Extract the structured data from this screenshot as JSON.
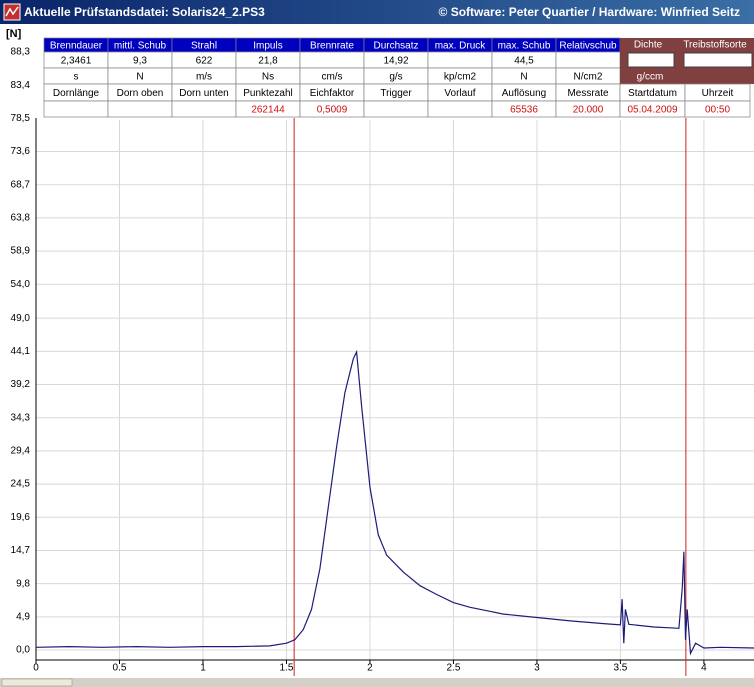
{
  "window": {
    "title": "Aktuelle Prüfstandsdatei: Solaris24_2.PS3",
    "credits": "© Software: Peter Quartier / Hardware: Winfried Seitz"
  },
  "table": {
    "headers": [
      "Brenndauer",
      "mittl. Schub",
      "Strahl",
      "Impuls",
      "Brennrate",
      "Durchsatz",
      "max. Druck",
      "max. Schub",
      "Relativschub"
    ],
    "values": [
      "2,3461",
      "9,3",
      "622",
      "21,8",
      null,
      "14,92",
      null,
      "44,5",
      null
    ],
    "units": [
      "s",
      "N",
      "m/s",
      "Ns",
      "cm/s",
      "g/s",
      "kp/cm2",
      "N",
      "N/cm2"
    ],
    "extra_headers": [
      "Dichte",
      "Treibstoffsorte"
    ],
    "extra_units": [
      "g/ccm"
    ],
    "headers2": [
      "Dornlänge",
      "Dorn oben",
      "Dorn unten",
      "Punktezahl",
      "Eichfaktor",
      "Trigger",
      "Vorlauf",
      "Auflösung",
      "Messrate",
      "Startdatum",
      "Uhrzeit"
    ],
    "values2": [
      null,
      null,
      null,
      "262144",
      "0,5009",
      null,
      null,
      "65536",
      "20.000",
      "05.04.2009",
      "00:50"
    ]
  },
  "chart_data": {
    "type": "line",
    "ylabel": "[N]",
    "x": [
      0,
      0.2,
      0.4,
      0.6,
      0.8,
      1.0,
      1.2,
      1.4,
      1.5,
      1.55,
      1.6,
      1.65,
      1.7,
      1.75,
      1.8,
      1.85,
      1.9,
      1.92,
      1.95,
      2.0,
      2.05,
      2.1,
      2.2,
      2.3,
      2.4,
      2.5,
      2.6,
      2.7,
      2.8,
      3.0,
      3.2,
      3.4,
      3.5,
      3.51,
      3.52,
      3.53,
      3.55,
      3.7,
      3.85,
      3.87,
      3.88,
      3.89,
      3.9,
      3.92,
      3.95,
      4.0,
      4.1,
      4.3
    ],
    "series": [
      {
        "color": "#1c1c78",
        "values": [
          0.4,
          0.5,
          0.4,
          0.5,
          0.4,
          0.5,
          0.5,
          0.6,
          1.0,
          1.5,
          3.0,
          6.0,
          12.0,
          21.0,
          30.0,
          38.0,
          43.0,
          44.0,
          36.0,
          24.0,
          17.0,
          14.0,
          11.5,
          9.5,
          8.2,
          7.0,
          6.3,
          5.8,
          5.3,
          4.8,
          4.3,
          3.9,
          3.7,
          7.5,
          1.0,
          6.0,
          3.8,
          3.4,
          3.2,
          9.0,
          14.5,
          1.5,
          6.0,
          -0.5,
          1.0,
          0.3,
          0.4,
          0.3
        ]
      }
    ],
    "xlim": [
      0,
      4.3
    ],
    "ylim": [
      0,
      88.3
    ],
    "xticks": [
      0,
      0.5,
      1,
      1.5,
      2,
      2.5,
      3,
      3.5,
      4
    ],
    "yticks": [
      {
        "value": 0,
        "label": "0,0"
      },
      {
        "value": 4.9,
        "label": "4,9"
      },
      {
        "value": 9.8,
        "label": "9,8"
      },
      {
        "value": 14.7,
        "label": "14,7"
      },
      {
        "value": 19.6,
        "label": "19,6"
      },
      {
        "value": 24.5,
        "label": "24,5"
      },
      {
        "value": 29.4,
        "label": "29,4"
      },
      {
        "value": 34.3,
        "label": "34,3"
      },
      {
        "value": 39.2,
        "label": "39,2"
      },
      {
        "value": 44.1,
        "label": "44,1"
      },
      {
        "value": 49.0,
        "label": "49,0"
      },
      {
        "value": 54.0,
        "label": "54,0"
      },
      {
        "value": 58.9,
        "label": "58,9"
      },
      {
        "value": 63.8,
        "label": "63,8"
      },
      {
        "value": 68.7,
        "label": "68,7"
      },
      {
        "value": 73.6,
        "label": "73,6"
      },
      {
        "value": 78.5,
        "label": "78,5"
      },
      {
        "value": 83.4,
        "label": "83,4"
      },
      {
        "value": 88.3,
        "label": "88,3"
      }
    ],
    "markers": [
      1.546,
      3.892
    ],
    "marker_color": "#d02020",
    "grid": true
  }
}
